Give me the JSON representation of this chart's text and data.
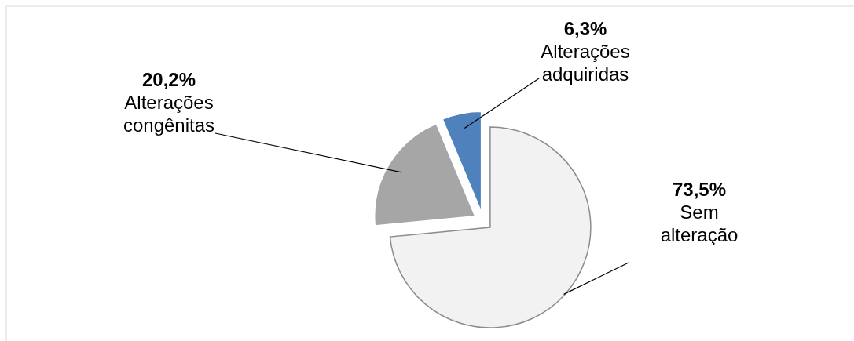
{
  "chart_data": {
    "type": "pie",
    "categories": [
      "Sem alteração",
      "Alterações congênitas",
      "Alterações adquiridas"
    ],
    "values": [
      73.5,
      20.2,
      6.3
    ],
    "colors": [
      "#f2f2f2",
      "#a6a6a6",
      "#4f81bd"
    ],
    "value_labels": [
      "73,5%",
      "20,2%",
      "6,3%"
    ]
  }
}
